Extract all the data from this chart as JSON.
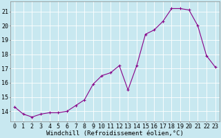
{
  "x": [
    0,
    1,
    2,
    3,
    4,
    5,
    6,
    7,
    8,
    9,
    10,
    11,
    12,
    13,
    14,
    15,
    16,
    17,
    18,
    19,
    20,
    21,
    22,
    23
  ],
  "y": [
    14.3,
    13.8,
    13.6,
    13.8,
    13.9,
    13.9,
    14.0,
    14.4,
    14.8,
    15.9,
    16.5,
    16.7,
    17.2,
    15.5,
    17.2,
    19.4,
    19.7,
    20.3,
    21.2,
    21.2,
    21.1,
    20.0,
    17.9,
    17.1
  ],
  "line_color": "#880088",
  "marker": "+",
  "marker_size": 3,
  "xlabel": "Windchill (Refroidissement éolien,°C)",
  "xlabel_fontsize": 6.5,
  "xtick_labels": [
    "0",
    "1",
    "2",
    "3",
    "4",
    "5",
    "6",
    "7",
    "8",
    "9",
    "10",
    "11",
    "12",
    "13",
    "14",
    "15",
    "16",
    "17",
    "18",
    "19",
    "20",
    "21",
    "22",
    "23"
  ],
  "ytick_vals": [
    14,
    15,
    16,
    17,
    18,
    19,
    20,
    21
  ],
  "ylim": [
    13.3,
    21.7
  ],
  "xlim": [
    -0.5,
    23.5
  ],
  "bg_color": "#c8e8f0",
  "grid_color": "#ffffff",
  "tick_fontsize": 6.0,
  "line_width": 0.8
}
